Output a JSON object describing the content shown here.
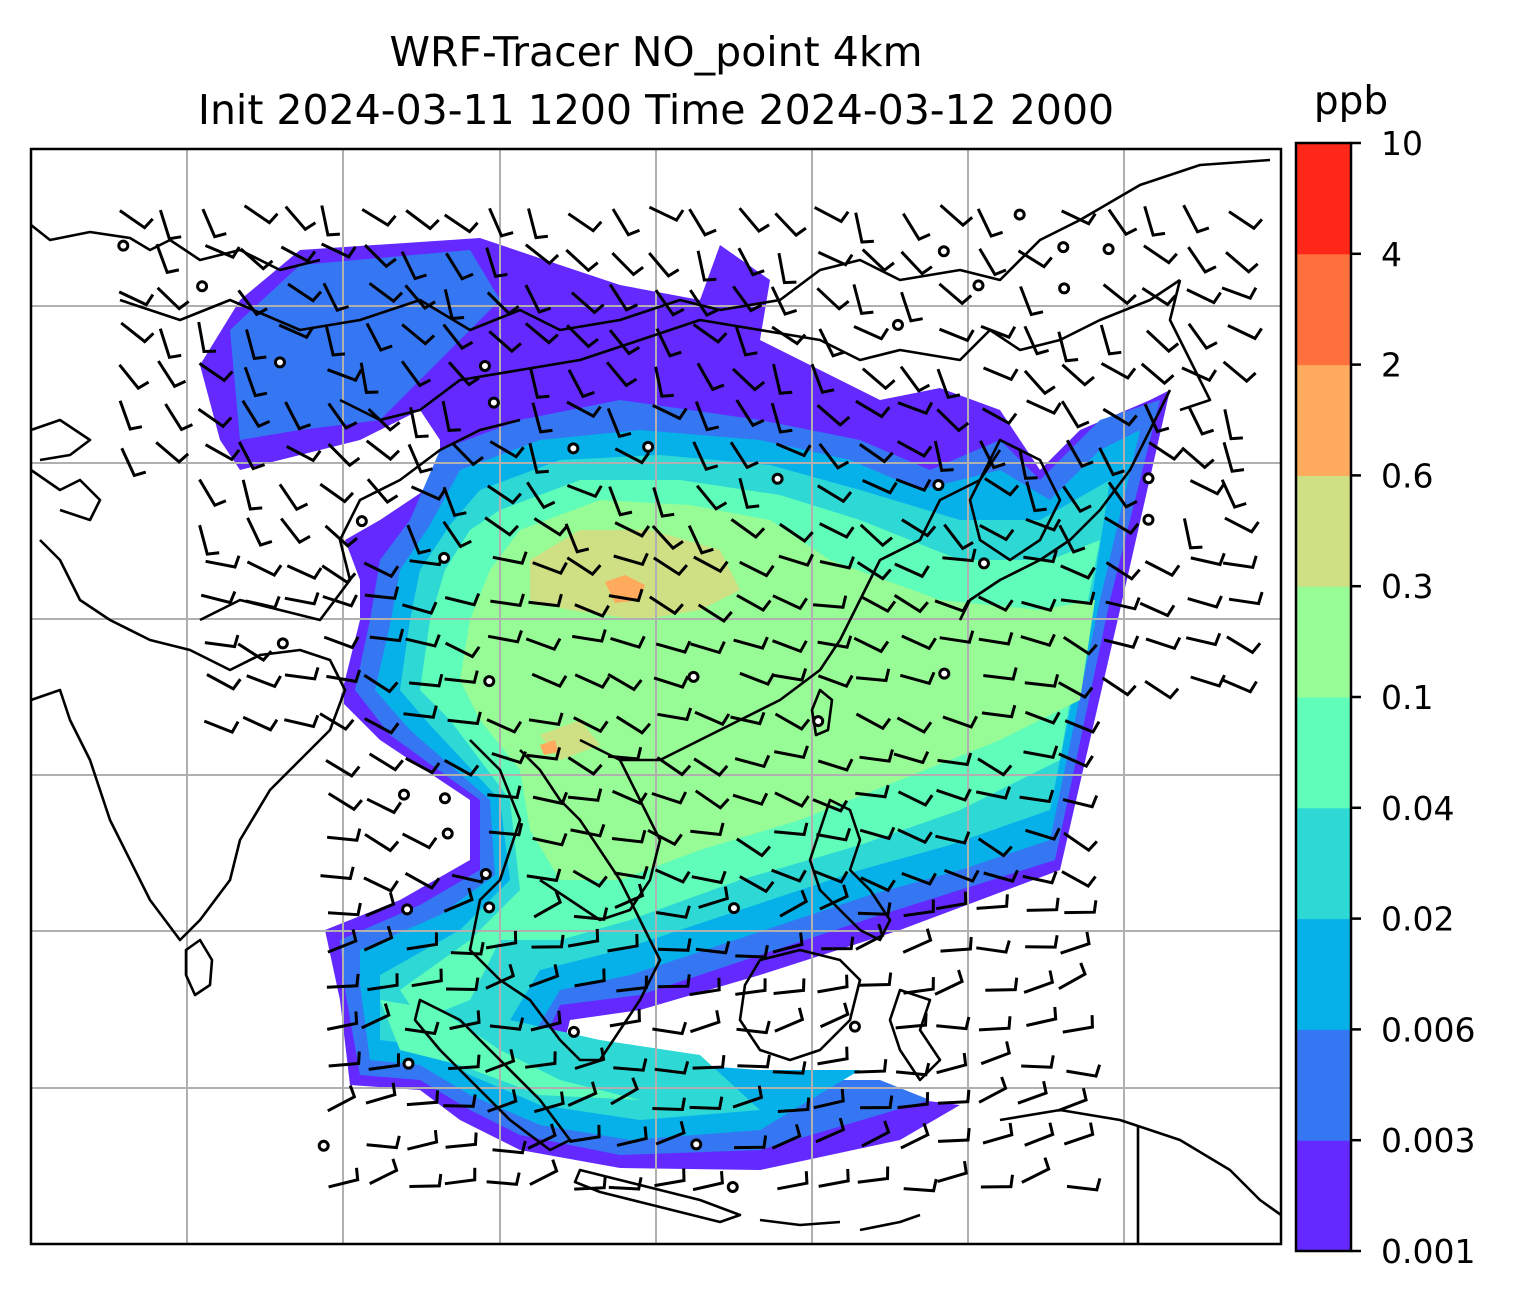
{
  "title": {
    "line1": "WRF-Tracer NO_point 4km",
    "line2": "Init 2024-03-11 1200 Time 2024-03-12 2000"
  },
  "colorbar": {
    "unit": "ppb",
    "levels": [
      "0.001",
      "0.003",
      "0.006",
      "0.02",
      "0.04",
      "0.1",
      "0.3",
      "0.6",
      "2",
      "4",
      "10"
    ],
    "colors": [
      "#6329ff",
      "#3577f2",
      "#06b1ea",
      "#2ed9d5",
      "#5ffdb9",
      "#97fc96",
      "#cfdf84",
      "#ffaa5c",
      "#ff703d",
      "#ff2718"
    ]
  },
  "map": {
    "background": "#ffffff",
    "coastline_color": "#000000",
    "gridline_color": "#b0b0b0",
    "wind_symbol_color": "#000000",
    "grid": true
  }
}
